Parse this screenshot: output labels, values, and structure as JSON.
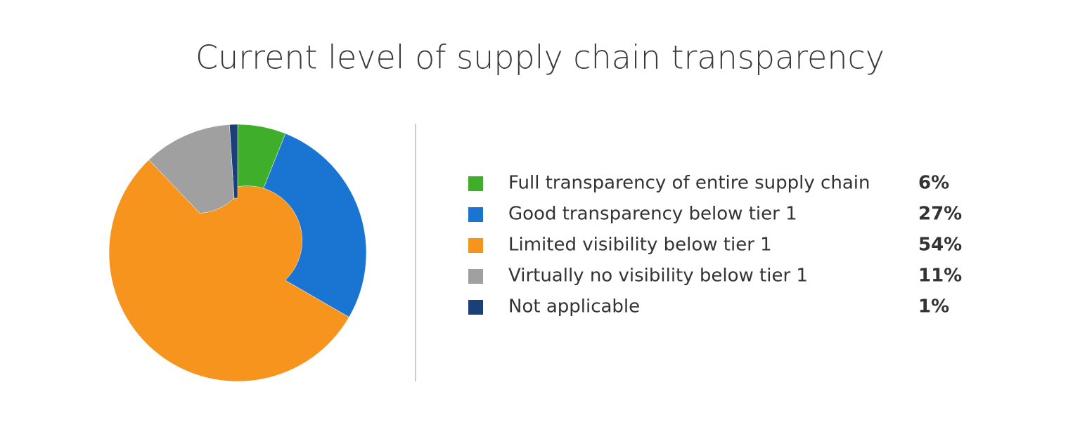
{
  "chart_data": {
    "type": "donut",
    "title": "Current level of supply chain transparency",
    "categories": [
      "Full transparency of entire supply chain",
      "Good transparency below tier 1",
      "Limited visibility below tier 1",
      "Virtually no visibility below tier 1",
      "Not applicable"
    ],
    "values": [
      6,
      27,
      54,
      11,
      1
    ],
    "value_labels": [
      "6%",
      "27%",
      "54%",
      "11%",
      "1%"
    ],
    "colors": [
      "#3fae2a",
      "#1a75d2",
      "#f7941d",
      "#a0a0a0",
      "#1b3f7a"
    ],
    "legend": "right"
  }
}
